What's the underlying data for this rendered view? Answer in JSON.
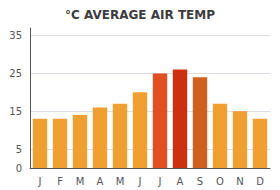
{
  "chart_data": {
    "type": "bar",
    "title": "°C AVERAGE AIR TEMP",
    "categories": [
      "J",
      "F",
      "M",
      "A",
      "M",
      "J",
      "J",
      "A",
      "S",
      "O",
      "N",
      "D"
    ],
    "values": [
      13,
      13,
      14,
      16,
      17,
      20,
      25,
      26,
      24,
      17,
      15,
      13
    ],
    "colors": [
      "#F0A030",
      "#F0A030",
      "#F0A030",
      "#F0A030",
      "#F0A030",
      "#F0A030",
      "#E05020",
      "#CC3010",
      "#D06020",
      "#F0A030",
      "#F0A030",
      "#F0A030"
    ],
    "ylim": [
      0,
      37
    ],
    "yticks": [
      0,
      5,
      15,
      25,
      35
    ],
    "grid": true
  }
}
